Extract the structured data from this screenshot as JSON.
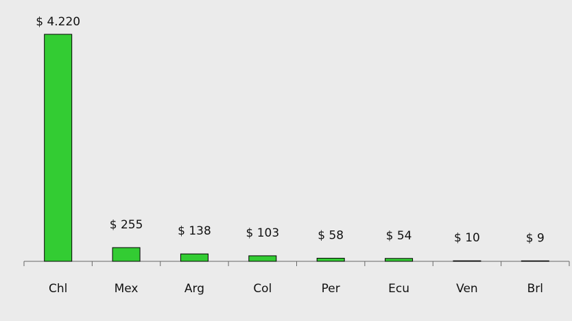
{
  "chart_data": {
    "type": "bar",
    "categories": [
      "Chl",
      "Mex",
      "Arg",
      "Col",
      "Per",
      "Ecu",
      "Ven",
      "Brl"
    ],
    "values": [
      4220,
      255,
      138,
      103,
      58,
      54,
      10,
      9
    ],
    "value_labels": [
      "$ 4.220",
      "$ 255",
      "$ 138",
      "$ 103",
      "$ 58",
      "$ 54",
      "$ 10",
      "$ 9"
    ],
    "color": "#33cc33"
  }
}
